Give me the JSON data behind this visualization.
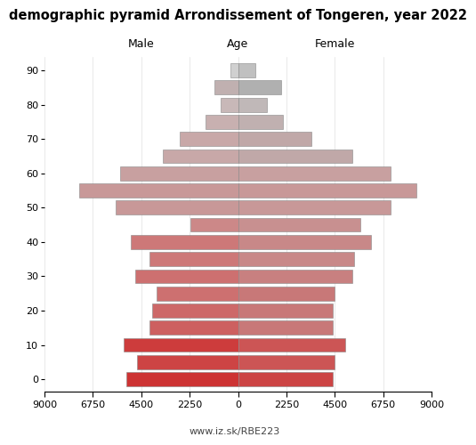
{
  "title": "demographic pyramid Arrondissement of Tongeren, year 2022",
  "label_male": "Male",
  "label_female": "Female",
  "label_age": "Age",
  "footnote": "www.iz.sk/RBE223",
  "age_groups": [
    0,
    5,
    10,
    15,
    20,
    25,
    30,
    35,
    40,
    45,
    50,
    55,
    60,
    65,
    70,
    75,
    80,
    85,
    90
  ],
  "ytick_ages": [
    0,
    10,
    20,
    30,
    40,
    50,
    60,
    70,
    80,
    90
  ],
  "male": [
    5200,
    4700,
    5300,
    4100,
    4000,
    3800,
    4800,
    4100,
    5000,
    2200,
    5700,
    7400,
    5500,
    3500,
    2700,
    1500,
    800,
    1100,
    350
  ],
  "female": [
    4400,
    4500,
    5000,
    4400,
    4400,
    4500,
    5300,
    5400,
    6200,
    5700,
    7100,
    8300,
    7100,
    5300,
    3400,
    2100,
    1350,
    2000,
    820
  ],
  "male_colors": [
    "#cd3333",
    "#cd4444",
    "#cd3c3c",
    "#cd6060",
    "#cd6868",
    "#cd7070",
    "#cd7070",
    "#cd7878",
    "#cd7878",
    "#cc8888",
    "#c89898",
    "#c89898",
    "#c8a0a0",
    "#c8a8a8",
    "#c8a8a8",
    "#c8b0b0",
    "#c8b8b8",
    "#c0b0b0",
    "#d0d0d0"
  ],
  "female_colors": [
    "#cc4444",
    "#cc5555",
    "#cc5555",
    "#c87878",
    "#c87878",
    "#c87878",
    "#c88080",
    "#c88888",
    "#c88888",
    "#c89090",
    "#c89898",
    "#c89898",
    "#c8a0a0",
    "#c0a8a8",
    "#c0a8a8",
    "#c0b0b0",
    "#c0b8b8",
    "#b0b0b0",
    "#c0c0c0"
  ],
  "xlim": 9000,
  "xtick_positions": [
    -9000,
    -6750,
    -4500,
    -2250,
    0,
    2250,
    4500,
    6750,
    9000
  ],
  "xtick_labels": [
    "9000",
    "6750",
    "4500",
    "2250",
    "0",
    "2250",
    "4500",
    "6750",
    "9000"
  ]
}
